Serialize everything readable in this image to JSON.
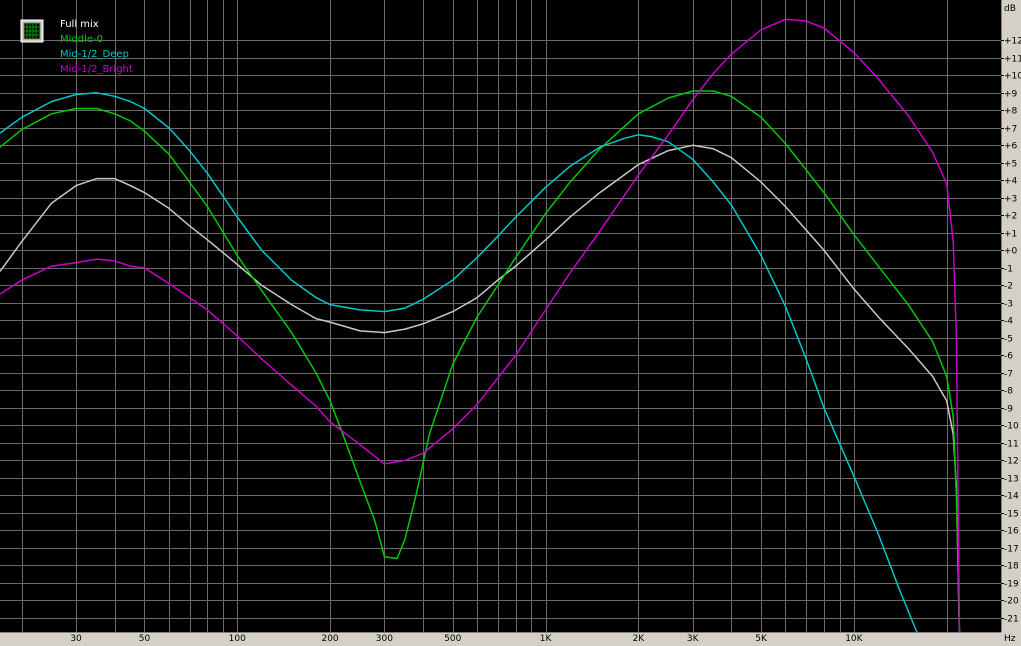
{
  "chart_data": {
    "type": "line",
    "x_scale": "log",
    "xlim": [
      17,
      30000
    ],
    "ylim": [
      -21.8,
      14.3
    ],
    "y_unit_label": "dB",
    "x_unit_label": "Hz",
    "y_ticks": [
      {
        "v": 12,
        "label": "+12"
      },
      {
        "v": 11,
        "label": "+11"
      },
      {
        "v": 10,
        "label": "+10"
      },
      {
        "v": 9,
        "label": "+9"
      },
      {
        "v": 8,
        "label": "+8"
      },
      {
        "v": 7,
        "label": "+7"
      },
      {
        "v": 6,
        "label": "+6"
      },
      {
        "v": 5,
        "label": "+5"
      },
      {
        "v": 4,
        "label": "+4"
      },
      {
        "v": 3,
        "label": "+3"
      },
      {
        "v": 2,
        "label": "+2"
      },
      {
        "v": 1,
        "label": "+1"
      },
      {
        "v": 0,
        "label": "+0"
      },
      {
        "v": -1,
        "label": "-1"
      },
      {
        "v": -2,
        "label": "-2"
      },
      {
        "v": -3,
        "label": "-3"
      },
      {
        "v": -4,
        "label": "-4"
      },
      {
        "v": -5,
        "label": "-5"
      },
      {
        "v": -6,
        "label": "-6"
      },
      {
        "v": -7,
        "label": "-7"
      },
      {
        "v": -8,
        "label": "-8"
      },
      {
        "v": -9,
        "label": "-9"
      },
      {
        "v": -10,
        "label": "-10"
      },
      {
        "v": -11,
        "label": "-11"
      },
      {
        "v": -12,
        "label": "-12"
      },
      {
        "v": -13,
        "label": "-13"
      },
      {
        "v": -14,
        "label": "-14"
      },
      {
        "v": -15,
        "label": "-15"
      },
      {
        "v": -16,
        "label": "-16"
      },
      {
        "v": -17,
        "label": "-17"
      },
      {
        "v": -18,
        "label": "-18"
      },
      {
        "v": -19,
        "label": "-19"
      },
      {
        "v": -20,
        "label": "-20"
      },
      {
        "v": -21,
        "label": "-21"
      }
    ],
    "x_ticks": [
      {
        "v": 30,
        "label": "30"
      },
      {
        "v": 50,
        "label": "50"
      },
      {
        "v": 100,
        "label": "100"
      },
      {
        "v": 200,
        "label": "200"
      },
      {
        "v": 300,
        "label": "300"
      },
      {
        "v": 500,
        "label": "500"
      },
      {
        "v": 1000,
        "label": "1K"
      },
      {
        "v": 2000,
        "label": "2K"
      },
      {
        "v": 3000,
        "label": "3K"
      },
      {
        "v": 5000,
        "label": "5K"
      },
      {
        "v": 10000,
        "label": "10K"
      }
    ],
    "x_grid": [
      20,
      30,
      40,
      50,
      60,
      70,
      80,
      90,
      100,
      200,
      300,
      400,
      500,
      600,
      700,
      800,
      900,
      1000,
      2000,
      3000,
      4000,
      5000,
      6000,
      7000,
      8000,
      9000,
      10000,
      20000
    ],
    "grid": true,
    "legend_position": "top-left",
    "series": [
      {
        "name": "Full mix",
        "color": "#c8c8c8",
        "x": [
          17,
          20,
          25,
          30,
          35,
          40,
          45,
          50,
          60,
          70,
          80,
          100,
          120,
          150,
          180,
          200,
          250,
          300,
          350,
          400,
          500,
          600,
          700,
          800,
          1000,
          1200,
          1500,
          2000,
          2500,
          3000,
          3500,
          4000,
          5000,
          6000,
          8000,
          10000,
          12000,
          15000,
          18000,
          20000,
          21000,
          21500,
          22000
        ],
        "y": [
          -1.2,
          0.5,
          2.7,
          3.7,
          4.1,
          4.1,
          3.7,
          3.3,
          2.4,
          1.4,
          0.6,
          -0.8,
          -2.0,
          -3.1,
          -3.9,
          -4.1,
          -4.6,
          -4.7,
          -4.5,
          -4.2,
          -3.5,
          -2.7,
          -1.7,
          -0.9,
          0.6,
          1.9,
          3.3,
          4.9,
          5.7,
          6.0,
          5.8,
          5.3,
          3.9,
          2.5,
          0.0,
          -2.2,
          -3.8,
          -5.6,
          -7.2,
          -8.6,
          -10.5,
          -13.5,
          -22
        ]
      },
      {
        "name": "Middle-0",
        "color": "#00c800",
        "x": [
          17,
          20,
          25,
          30,
          35,
          40,
          45,
          50,
          60,
          70,
          80,
          100,
          120,
          150,
          180,
          200,
          220,
          250,
          280,
          300,
          330,
          350,
          380,
          420,
          500,
          600,
          700,
          800,
          1000,
          1200,
          1500,
          2000,
          2500,
          3000,
          3500,
          4000,
          5000,
          6000,
          8000,
          10000,
          12000,
          15000,
          18000,
          20000,
          21000,
          21500,
          22000
        ],
        "y": [
          5.9,
          6.9,
          7.8,
          8.1,
          8.1,
          7.8,
          7.4,
          6.8,
          5.5,
          3.9,
          2.5,
          -0.3,
          -2.3,
          -4.7,
          -7.0,
          -8.6,
          -10.5,
          -13.2,
          -15.5,
          -17.5,
          -17.6,
          -16.5,
          -14.0,
          -10.5,
          -6.5,
          -3.8,
          -2.0,
          -0.4,
          2.1,
          3.9,
          5.8,
          7.8,
          8.7,
          9.1,
          9.1,
          8.8,
          7.6,
          6.1,
          3.3,
          0.9,
          -0.9,
          -3.1,
          -5.2,
          -7.2,
          -9.5,
          -14.0,
          -22
        ]
      },
      {
        "name": "Mid-1/2_Deep",
        "color": "#00c8c8",
        "x": [
          17,
          20,
          25,
          30,
          35,
          40,
          45,
          50,
          60,
          70,
          80,
          100,
          120,
          150,
          180,
          200,
          250,
          300,
          350,
          400,
          500,
          600,
          700,
          800,
          1000,
          1200,
          1500,
          1800,
          2000,
          2200,
          2500,
          3000,
          3500,
          4000,
          5000,
          6000,
          7000,
          8000,
          10000,
          12000,
          14000,
          15000,
          16000,
          16500
        ],
        "y": [
          6.7,
          7.6,
          8.5,
          8.9,
          9.0,
          8.8,
          8.5,
          8.1,
          7.0,
          5.7,
          4.4,
          1.9,
          0.0,
          -1.7,
          -2.7,
          -3.1,
          -3.4,
          -3.5,
          -3.3,
          -2.8,
          -1.7,
          -0.4,
          0.8,
          1.9,
          3.6,
          4.8,
          5.9,
          6.4,
          6.6,
          6.5,
          6.2,
          5.2,
          3.9,
          2.6,
          -0.3,
          -3.2,
          -6.2,
          -9.0,
          -12.9,
          -16.2,
          -19.3,
          -20.6,
          -21.8,
          -22
        ]
      },
      {
        "name": "Mid-1/2_Bright",
        "color": "#c800c8",
        "x": [
          17,
          20,
          25,
          30,
          35,
          40,
          45,
          50,
          60,
          70,
          80,
          100,
          120,
          150,
          180,
          200,
          250,
          300,
          350,
          400,
          500,
          600,
          700,
          800,
          1000,
          1200,
          1500,
          2000,
          2500,
          3000,
          3500,
          4000,
          5000,
          6000,
          7000,
          8000,
          10000,
          12000,
          15000,
          18000,
          20000,
          21000,
          21500,
          22000
        ],
        "y": [
          -2.5,
          -1.7,
          -0.9,
          -0.7,
          -0.5,
          -0.6,
          -0.9,
          -1.0,
          -1.9,
          -2.7,
          -3.4,
          -4.9,
          -6.2,
          -7.7,
          -8.9,
          -9.8,
          -11.1,
          -12.2,
          -12.0,
          -11.6,
          -10.2,
          -8.8,
          -7.3,
          -6.0,
          -3.4,
          -1.3,
          1.1,
          4.3,
          6.6,
          8.6,
          10.1,
          11.2,
          12.6,
          13.2,
          13.1,
          12.7,
          11.3,
          9.8,
          7.7,
          5.6,
          3.8,
          0.5,
          -5.0,
          -22
        ]
      }
    ]
  }
}
